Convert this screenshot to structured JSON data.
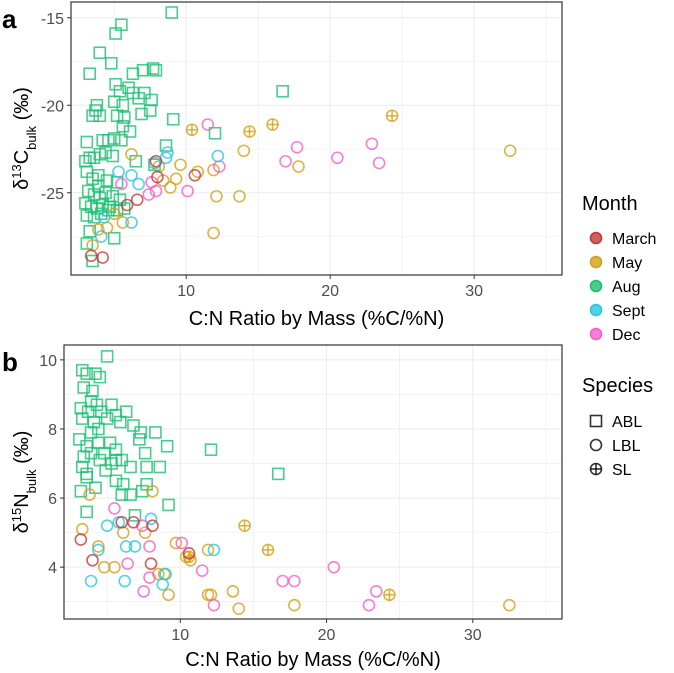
{
  "chart_data": [
    {
      "type": "scatter",
      "panel_label": "a",
      "xlabel": "C:N Ratio by Mass (%C/%N)",
      "ylabel_parts": {
        "delta": "δ",
        "sup": "13",
        "base": "C",
        "sub": "bulk",
        "unit": " (‰)"
      },
      "xlim": [
        2.0,
        36.1
      ],
      "ylim": [
        -29.7,
        -14.1
      ],
      "xticks": [
        10,
        20,
        30
      ],
      "yticks": [
        -25,
        -20,
        -15
      ],
      "grid": true,
      "series": [
        {
          "month": "Aug",
          "species": "ABL",
          "points": [
            [
              9.0,
              -14.7
            ],
            [
              5.5,
              -15.4
            ],
            [
              5.1,
              -15.9
            ],
            [
              4.0,
              -17.0
            ],
            [
              3.3,
              -18.2
            ],
            [
              4.8,
              -17.6
            ],
            [
              6.3,
              -18.2
            ],
            [
              7.0,
              -18.0
            ],
            [
              7.7,
              -17.9
            ],
            [
              7.9,
              -18.0
            ],
            [
              16.7,
              -19.2
            ],
            [
              5.1,
              -18.8
            ],
            [
              5.4,
              -19.2
            ],
            [
              6.0,
              -19.0
            ],
            [
              6.3,
              -19.3
            ],
            [
              6.7,
              -19.6
            ],
            [
              7.1,
              -19.3
            ],
            [
              7.6,
              -19.7
            ],
            [
              5.0,
              -19.8
            ],
            [
              5.6,
              -20.0
            ],
            [
              3.8,
              -20.0
            ],
            [
              3.7,
              -20.3
            ],
            [
              3.5,
              -20.6
            ],
            [
              4.0,
              -20.6
            ],
            [
              5.2,
              -20.6
            ],
            [
              5.7,
              -20.7
            ],
            [
              6.9,
              -20.5
            ],
            [
              7.5,
              -20.3
            ],
            [
              9.1,
              -20.8
            ],
            [
              5.6,
              -21.2
            ],
            [
              6.1,
              -21.5
            ],
            [
              12.0,
              -21.6
            ],
            [
              3.1,
              -22.1
            ],
            [
              4.2,
              -22.0
            ],
            [
              4.6,
              -22.0
            ],
            [
              5.0,
              -21.9
            ],
            [
              5.5,
              -22.0
            ],
            [
              8.6,
              -22.3
            ],
            [
              3.0,
              -23.2
            ],
            [
              3.3,
              -23.0
            ],
            [
              3.6,
              -23.0
            ],
            [
              4.0,
              -22.8
            ],
            [
              4.4,
              -22.7
            ],
            [
              4.9,
              -22.9
            ],
            [
              6.5,
              -23.2
            ],
            [
              7.8,
              -23.4
            ],
            [
              3.1,
              -23.8
            ],
            [
              3.5,
              -24.2
            ],
            [
              3.9,
              -24.0
            ],
            [
              4.5,
              -24.3
            ],
            [
              5.2,
              -24.4
            ],
            [
              3.2,
              -24.9
            ],
            [
              3.6,
              -25.1
            ],
            [
              4.0,
              -25.3
            ],
            [
              4.4,
              -25.0
            ],
            [
              4.9,
              -25.2
            ],
            [
              5.4,
              -25.4
            ],
            [
              3.0,
              -25.6
            ],
            [
              3.4,
              -25.8
            ],
            [
              3.8,
              -25.9
            ],
            [
              4.2,
              -25.7
            ],
            [
              4.7,
              -25.8
            ],
            [
              5.2,
              -26.0
            ],
            [
              5.7,
              -25.9
            ],
            [
              3.1,
              -26.3
            ],
            [
              3.6,
              -26.4
            ],
            [
              4.1,
              -26.2
            ],
            [
              3.3,
              -27.2
            ],
            [
              3.1,
              -27.9
            ],
            [
              5.0,
              -27.6
            ],
            [
              3.5,
              -28.9
            ],
            [
              4.6,
              -26.0
            ],
            [
              3.9,
              -24.6
            ]
          ]
        },
        {
          "month": "May",
          "species": "LBL",
          "points": [
            [
              6.2,
              -22.8
            ],
            [
              9.6,
              -23.4
            ],
            [
              10.8,
              -23.8
            ],
            [
              11.9,
              -23.7
            ],
            [
              14.0,
              -22.6
            ],
            [
              17.8,
              -23.5
            ],
            [
              32.5,
              -22.6
            ],
            [
              12.1,
              -25.2
            ],
            [
              13.7,
              -25.2
            ],
            [
              11.9,
              -27.3
            ],
            [
              9.3,
              -24.2
            ],
            [
              8.9,
              -24.7
            ],
            [
              8.4,
              -24.3
            ],
            [
              8.1,
              -23.5
            ],
            [
              5.0,
              -26.2
            ],
            [
              5.6,
              -26.7
            ],
            [
              4.5,
              -27.0
            ],
            [
              3.9,
              -27.1
            ],
            [
              3.5,
              -28.0
            ]
          ]
        },
        {
          "month": "May",
          "species": "SL",
          "points": [
            [
              10.4,
              -21.4
            ],
            [
              14.4,
              -21.5
            ],
            [
              16.0,
              -21.1
            ],
            [
              24.3,
              -20.6
            ]
          ]
        },
        {
          "month": "Dec",
          "species": "LBL",
          "points": [
            [
              11.5,
              -21.1
            ],
            [
              17.7,
              -22.4
            ],
            [
              16.9,
              -23.2
            ],
            [
              20.5,
              -23.0
            ],
            [
              22.9,
              -22.2
            ],
            [
              23.4,
              -23.3
            ],
            [
              12.3,
              -23.5
            ],
            [
              10.1,
              -24.9
            ],
            [
              7.4,
              -25.1
            ],
            [
              7.6,
              -24.4
            ],
            [
              7.9,
              -24.9
            ],
            [
              5.5,
              -24.5
            ]
          ]
        },
        {
          "month": "Sept",
          "species": "LBL",
          "points": [
            [
              12.2,
              -22.9
            ],
            [
              8.7,
              -22.7
            ],
            [
              8.6,
              -23.0
            ],
            [
              7.8,
              -23.3
            ],
            [
              5.3,
              -23.8
            ],
            [
              6.2,
              -24.0
            ],
            [
              6.7,
              -24.5
            ],
            [
              4.3,
              -26.4
            ],
            [
              4.1,
              -27.5
            ],
            [
              6.2,
              -26.7
            ]
          ]
        },
        {
          "month": "March",
          "species": "LBL",
          "points": [
            [
              7.9,
              -23.2
            ],
            [
              10.6,
              -24.0
            ],
            [
              8.0,
              -24.1
            ],
            [
              6.6,
              -25.4
            ],
            [
              5.9,
              -25.7
            ],
            [
              3.4,
              -28.6
            ],
            [
              4.2,
              -28.7
            ]
          ]
        }
      ]
    },
    {
      "type": "scatter",
      "panel_label": "b",
      "xlabel": "C:N Ratio by Mass (%C/%N)",
      "ylabel_parts": {
        "delta": "δ",
        "sup": "15",
        "base": "N",
        "sub": "bulk",
        "unit": " (‰)"
      },
      "xlim": [
        2.05,
        36.1
      ],
      "ylim": [
        2.5,
        10.43
      ],
      "xticks": [
        10,
        20,
        30
      ],
      "yticks": [
        4,
        6,
        8,
        10
      ],
      "grid": true,
      "series": [
        {
          "month": "Aug",
          "species": "ABL",
          "points": [
            [
              5.0,
              10.1
            ],
            [
              3.3,
              9.7
            ],
            [
              3.6,
              9.6
            ],
            [
              4.2,
              9.6
            ],
            [
              4.5,
              9.5
            ],
            [
              3.4,
              9.2
            ],
            [
              4.0,
              9.1
            ],
            [
              3.9,
              8.8
            ],
            [
              4.3,
              8.7
            ],
            [
              3.2,
              8.6
            ],
            [
              3.7,
              8.5
            ],
            [
              4.6,
              8.5
            ],
            [
              5.3,
              8.7
            ],
            [
              5.6,
              8.4
            ],
            [
              6.3,
              8.5
            ],
            [
              3.3,
              8.3
            ],
            [
              4.1,
              8.2
            ],
            [
              5.0,
              8.3
            ],
            [
              5.9,
              8.2
            ],
            [
              6.8,
              8.1
            ],
            [
              7.2,
              7.7
            ],
            [
              7.3,
              7.9
            ],
            [
              8.3,
              7.9
            ],
            [
              9.1,
              7.5
            ],
            [
              12.1,
              7.4
            ],
            [
              3.1,
              7.7
            ],
            [
              3.6,
              7.5
            ],
            [
              4.4,
              7.6
            ],
            [
              5.2,
              7.6
            ],
            [
              5.6,
              7.4
            ],
            [
              3.4,
              7.2
            ],
            [
              3.9,
              7.3
            ],
            [
              4.5,
              7.1
            ],
            [
              4.8,
              7.3
            ],
            [
              5.6,
              7.1
            ],
            [
              6.0,
              7.1
            ],
            [
              3.3,
              6.9
            ],
            [
              3.6,
              6.7
            ],
            [
              6.6,
              6.9
            ],
            [
              7.6,
              7.3
            ],
            [
              7.7,
              6.9
            ],
            [
              8.6,
              6.9
            ],
            [
              16.7,
              6.7
            ],
            [
              3.6,
              6.6
            ],
            [
              4.9,
              6.8
            ],
            [
              5.6,
              6.5
            ],
            [
              6.1,
              6.4
            ],
            [
              7.7,
              6.4
            ],
            [
              4.2,
              6.3
            ],
            [
              3.2,
              6.2
            ],
            [
              6.0,
              6.1
            ],
            [
              6.6,
              6.1
            ],
            [
              7.4,
              6.2
            ],
            [
              9.2,
              5.8
            ],
            [
              3.6,
              5.6
            ],
            [
              6.9,
              5.5
            ],
            [
              3.9,
              7.9
            ],
            [
              4.4,
              8.0
            ],
            [
              5.3,
              7.0
            ]
          ]
        },
        {
          "month": "May",
          "species": "LBL",
          "points": [
            [
              3.3,
              5.1
            ],
            [
              8.1,
              6.2
            ],
            [
              3.8,
              6.1
            ],
            [
              7.6,
              5.0
            ],
            [
              4.4,
              4.6
            ],
            [
              9.7,
              4.7
            ],
            [
              10.4,
              4.3
            ],
            [
              10.7,
              4.2
            ],
            [
              11.9,
              4.5
            ],
            [
              4.8,
              4.0
            ],
            [
              5.5,
              4.0
            ],
            [
              8.5,
              3.8
            ],
            [
              8.9,
              3.8
            ],
            [
              9.2,
              3.2
            ],
            [
              11.9,
              3.2
            ],
            [
              12.1,
              3.2
            ],
            [
              13.6,
              3.3
            ],
            [
              14.0,
              2.8
            ],
            [
              17.8,
              2.9
            ],
            [
              32.5,
              2.9
            ],
            [
              6.1,
              5.0
            ]
          ]
        },
        {
          "month": "May",
          "species": "SL",
          "points": [
            [
              14.4,
              5.2
            ],
            [
              16.0,
              4.5
            ],
            [
              24.3,
              3.2
            ],
            [
              10.6,
              4.3
            ]
          ]
        },
        {
          "month": "Dec",
          "species": "LBL",
          "points": [
            [
              5.5,
              5.7
            ],
            [
              7.4,
              5.2
            ],
            [
              10.1,
              4.7
            ],
            [
              7.9,
              4.6
            ],
            [
              6.4,
              4.1
            ],
            [
              11.5,
              3.9
            ],
            [
              7.9,
              3.7
            ],
            [
              7.5,
              3.3
            ],
            [
              12.3,
              2.9
            ],
            [
              17.0,
              3.6
            ],
            [
              17.8,
              3.6
            ],
            [
              20.5,
              4.0
            ],
            [
              23.4,
              3.3
            ],
            [
              22.9,
              2.9
            ]
          ]
        },
        {
          "month": "Sept",
          "species": "LBL",
          "points": [
            [
              8.0,
              5.4
            ],
            [
              5.0,
              5.2
            ],
            [
              5.8,
              5.3
            ],
            [
              6.3,
              4.6
            ],
            [
              6.9,
              4.6
            ],
            [
              4.4,
              4.5
            ],
            [
              12.3,
              4.5
            ],
            [
              3.9,
              3.6
            ],
            [
              6.2,
              3.6
            ],
            [
              8.8,
              3.5
            ],
            [
              9.0,
              3.8
            ]
          ]
        },
        {
          "month": "March",
          "species": "LBL",
          "points": [
            [
              3.2,
              4.8
            ],
            [
              6.0,
              5.3
            ],
            [
              6.8,
              5.3
            ],
            [
              8.1,
              5.2
            ],
            [
              4.0,
              4.2
            ],
            [
              8.0,
              4.1
            ],
            [
              10.6,
              4.4
            ]
          ]
        }
      ]
    }
  ],
  "legend": {
    "month_title": "Month",
    "months": [
      {
        "label": "March",
        "color": "#c0393b"
      },
      {
        "label": "May",
        "color": "#d4a017"
      },
      {
        "label": "Aug",
        "color": "#1dbf73"
      },
      {
        "label": "Sept",
        "color": "#29c5e0"
      },
      {
        "label": "Dec",
        "color": "#f25fcc"
      }
    ],
    "species_title": "Species",
    "species": [
      {
        "label": "ABL",
        "shape": "square"
      },
      {
        "label": "LBL",
        "shape": "circle"
      },
      {
        "label": "SL",
        "shape": "circle-plus"
      }
    ]
  }
}
